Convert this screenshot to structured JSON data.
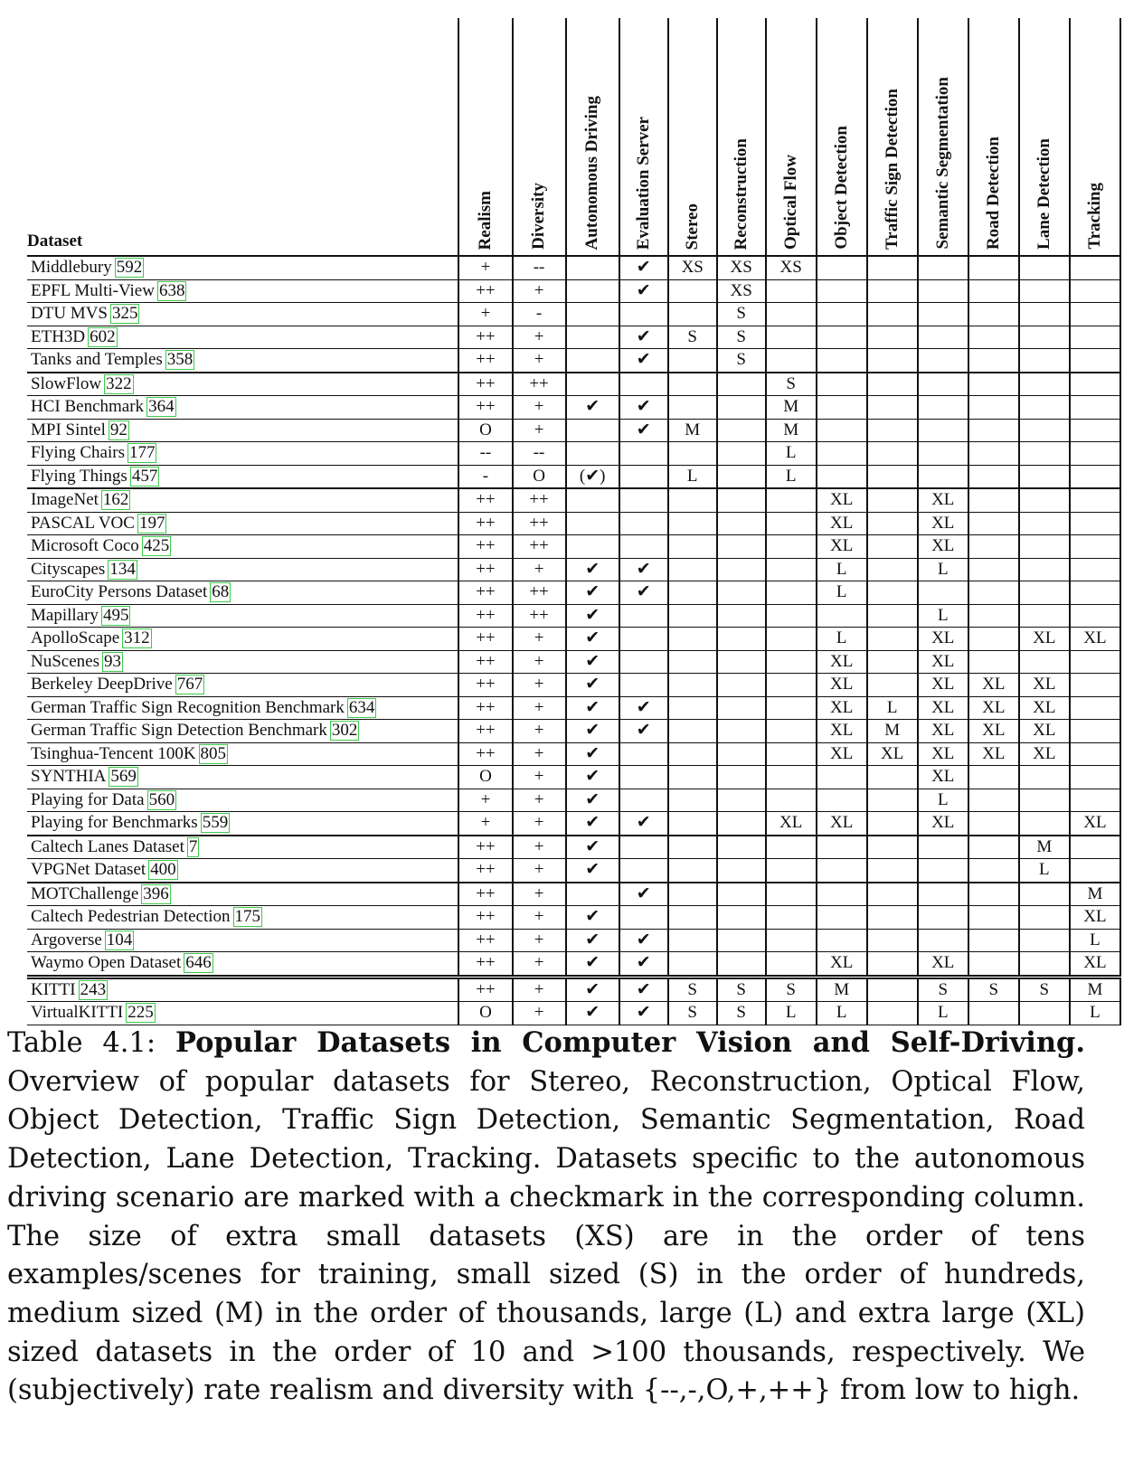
{
  "table": {
    "header_dataset": "Dataset",
    "columns": [
      "Realism",
      "Diversity",
      "Autonomous Driving",
      "Evaluation Server",
      "Stereo",
      "Reconstruction",
      "Optical Flow",
      "Object Detection",
      "Traffic Sign Detection",
      "Semantic Segmentation",
      "Road Detection",
      "Lane Detection",
      "Tracking"
    ],
    "rows": [
      {
        "name": "Middlebury",
        "ref": "592",
        "group": "start",
        "cells": [
          "+",
          "--",
          "",
          "✔",
          "XS",
          "XS",
          "XS",
          "",
          "",
          "",
          "",
          "",
          ""
        ]
      },
      {
        "name": "EPFL Multi-View",
        "ref": "638",
        "cells": [
          "++",
          "+",
          "",
          "✔",
          "",
          "XS",
          "",
          "",
          "",
          "",
          "",
          "",
          ""
        ]
      },
      {
        "name": "DTU MVS",
        "ref": "325",
        "cells": [
          "+",
          "-",
          "",
          "",
          "",
          "S",
          "",
          "",
          "",
          "",
          "",
          "",
          ""
        ]
      },
      {
        "name": "ETH3D",
        "ref": "602",
        "cells": [
          "++",
          "+",
          "",
          "✔",
          "S",
          "S",
          "",
          "",
          "",
          "",
          "",
          "",
          ""
        ]
      },
      {
        "name": "Tanks and Temples",
        "ref": "358",
        "cells": [
          "++",
          "+",
          "",
          "✔",
          "",
          "S",
          "",
          "",
          "",
          "",
          "",
          "",
          ""
        ]
      },
      {
        "name": "SlowFlow",
        "ref": "322",
        "group": "start",
        "cells": [
          "++",
          "++",
          "",
          "",
          "",
          "",
          "S",
          "",
          "",
          "",
          "",
          "",
          ""
        ]
      },
      {
        "name": "HCI Benchmark",
        "ref": "364",
        "cells": [
          "++",
          "+",
          "✔",
          "✔",
          "",
          "",
          "M",
          "",
          "",
          "",
          "",
          "",
          ""
        ]
      },
      {
        "name": "MPI Sintel",
        "ref": "92",
        "cells": [
          "O",
          "+",
          "",
          "✔",
          "M",
          "",
          "M",
          "",
          "",
          "",
          "",
          "",
          ""
        ]
      },
      {
        "name": "Flying Chairs",
        "ref": "177",
        "cells": [
          "--",
          "--",
          "",
          "",
          "",
          "",
          "L",
          "",
          "",
          "",
          "",
          "",
          ""
        ]
      },
      {
        "name": "Flying Things",
        "ref": "457",
        "cells": [
          "-",
          "O",
          "(✔)",
          "",
          "L",
          "",
          "L",
          "",
          "",
          "",
          "",
          "",
          ""
        ]
      },
      {
        "name": "ImageNet",
        "ref": "162",
        "group": "start",
        "cells": [
          "++",
          "++",
          "",
          "",
          "",
          "",
          "",
          "XL",
          "",
          "XL",
          "",
          "",
          ""
        ]
      },
      {
        "name": "PASCAL VOC",
        "ref": "197",
        "cells": [
          "++",
          "++",
          "",
          "",
          "",
          "",
          "",
          "XL",
          "",
          "XL",
          "",
          "",
          ""
        ]
      },
      {
        "name": "Microsoft Coco",
        "ref": "425",
        "cells": [
          "++",
          "++",
          "",
          "",
          "",
          "",
          "",
          "XL",
          "",
          "XL",
          "",
          "",
          ""
        ]
      },
      {
        "name": "Cityscapes",
        "ref": "134",
        "cells": [
          "++",
          "+",
          "✔",
          "✔",
          "",
          "",
          "",
          "L",
          "",
          "L",
          "",
          "",
          ""
        ]
      },
      {
        "name": "EuroCity Persons Dataset",
        "ref": "68",
        "cells": [
          "++",
          "++",
          "✔",
          "✔",
          "",
          "",
          "",
          "L",
          "",
          "",
          "",
          "",
          ""
        ]
      },
      {
        "name": "Mapillary",
        "ref": "495",
        "cells": [
          "++",
          "++",
          "✔",
          "",
          "",
          "",
          "",
          "",
          "",
          "L",
          "",
          "",
          ""
        ]
      },
      {
        "name": "ApolloScape",
        "ref": "312",
        "cells": [
          "++",
          "+",
          "✔",
          "",
          "",
          "",
          "",
          "L",
          "",
          "XL",
          "",
          "XL",
          "XL"
        ]
      },
      {
        "name": "NuScenes",
        "ref": "93",
        "cells": [
          "++",
          "+",
          "✔",
          "",
          "",
          "",
          "",
          "XL",
          "",
          "XL",
          "",
          "",
          ""
        ]
      },
      {
        "name": "Berkeley DeepDrive",
        "ref": "767",
        "cells": [
          "++",
          "+",
          "✔",
          "",
          "",
          "",
          "",
          "XL",
          "",
          "XL",
          "XL",
          "XL",
          ""
        ]
      },
      {
        "name": "German Traffic Sign Recognition Benchmark",
        "ref": "634",
        "cells": [
          "++",
          "+",
          "✔",
          "✔",
          "",
          "",
          "",
          "XL",
          "L",
          "XL",
          "XL",
          "XL",
          ""
        ]
      },
      {
        "name": "German Traffic Sign Detection Benchmark",
        "ref": "302",
        "cells": [
          "++",
          "+",
          "✔",
          "✔",
          "",
          "",
          "",
          "XL",
          "M",
          "XL",
          "XL",
          "XL",
          ""
        ]
      },
      {
        "name": "Tsinghua-Tencent 100K",
        "ref": "805",
        "cells": [
          "++",
          "+",
          "✔",
          "",
          "",
          "",
          "",
          "XL",
          "XL",
          "XL",
          "XL",
          "XL",
          ""
        ]
      },
      {
        "name": "SYNTHIA",
        "ref": "569",
        "cells": [
          "O",
          "+",
          "✔",
          "",
          "",
          "",
          "",
          "",
          "",
          "XL",
          "",
          "",
          ""
        ]
      },
      {
        "name": "Playing for Data",
        "ref": "560",
        "cells": [
          "+",
          "+",
          "✔",
          "",
          "",
          "",
          "",
          "",
          "",
          "L",
          "",
          "",
          ""
        ]
      },
      {
        "name": "Playing for Benchmarks",
        "ref": "559",
        "cells": [
          "+",
          "+",
          "✔",
          "✔",
          "",
          "",
          "XL",
          "XL",
          "",
          "XL",
          "",
          "",
          "XL"
        ]
      },
      {
        "name": "Caltech Lanes Dataset",
        "ref": "7",
        "group": "start",
        "cells": [
          "++",
          "+",
          "✔",
          "",
          "",
          "",
          "",
          "",
          "",
          "",
          "",
          "M",
          ""
        ]
      },
      {
        "name": "VPGNet Dataset",
        "ref": "400",
        "cells": [
          "++",
          "+",
          "✔",
          "",
          "",
          "",
          "",
          "",
          "",
          "",
          "",
          "L",
          ""
        ]
      },
      {
        "name": "MOTChallenge",
        "ref": "396",
        "group": "start",
        "cells": [
          "++",
          "+",
          "",
          "✔",
          "",
          "",
          "",
          "",
          "",
          "",
          "",
          "",
          "M"
        ]
      },
      {
        "name": "Caltech Pedestrian Detection",
        "ref": "175",
        "cells": [
          "++",
          "+",
          "✔",
          "",
          "",
          "",
          "",
          "",
          "",
          "",
          "",
          "",
          "XL"
        ]
      },
      {
        "name": "Argoverse",
        "ref": "104",
        "cells": [
          "++",
          "+",
          "✔",
          "✔",
          "",
          "",
          "",
          "",
          "",
          "",
          "",
          "",
          "L"
        ]
      },
      {
        "name": "Waymo Open Dataset",
        "ref": "646",
        "cells": [
          "++",
          "+",
          "✔",
          "✔",
          "",
          "",
          "",
          "XL",
          "",
          "XL",
          "",
          "",
          "XL"
        ]
      },
      {
        "name": "KITTI",
        "ref": "243",
        "group": "kitti",
        "cells": [
          "++",
          "+",
          "✔",
          "✔",
          "S",
          "S",
          "S",
          "M",
          "",
          "S",
          "S",
          "S",
          "M"
        ]
      },
      {
        "name": "VirtualKITTI",
        "ref": "225",
        "cells": [
          "O",
          "+",
          "✔",
          "✔",
          "S",
          "S",
          "L",
          "L",
          "",
          "L",
          "",
          "",
          "L"
        ]
      }
    ]
  },
  "caption": {
    "label": "Table 4.1: ",
    "title": "Popular Datasets in Computer Vision and Self-Driving.",
    "body": " Overview of popular datasets for Stereo, Reconstruction, Optical Flow, Object Detection, Traffic Sign Detection, Semantic Segmentation, Road Detection, Lane Detection, Tracking. Datasets specific to the autonomous driving scenario are marked with a checkmark in the corresponding column.  The size of extra small datasets (XS) are in the order of tens examples/scenes for training, small sized (S) in the order of hundreds, medium sized (M) in the order of thousands, large (L) and extra large (XL) sized datasets in the order of 10 and >100 thousands, respectively.  We (subjectively) rate realism and diversity with {--,-,O,+,++} from low to high."
  }
}
